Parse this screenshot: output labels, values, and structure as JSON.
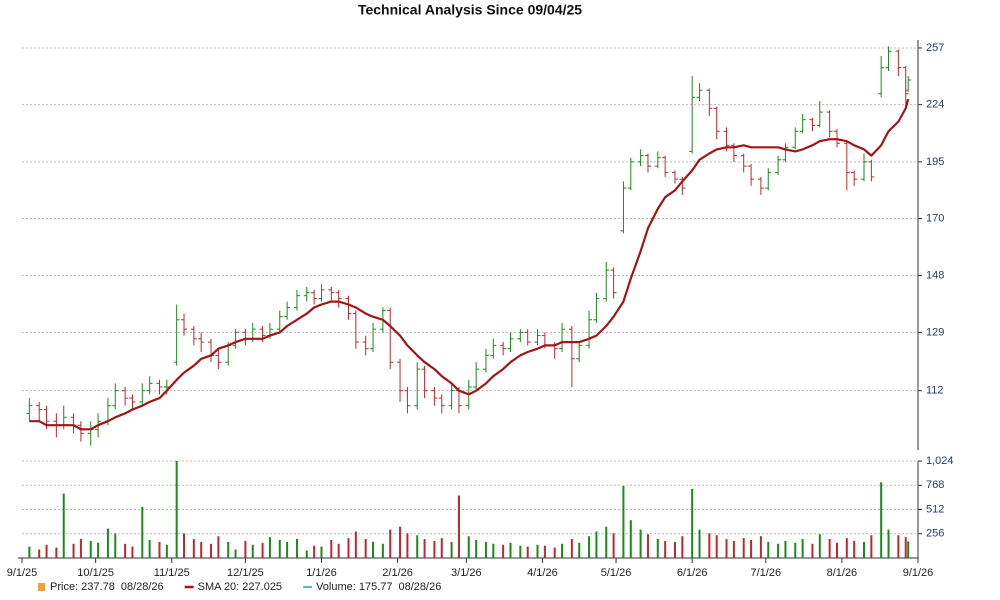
{
  "chart_data": {
    "type": "ohlc",
    "title": "Technical Analysis Since 09/04/25",
    "x": [
      "2025-09-04",
      "2025-09-08",
      "2025-09-11",
      "2025-09-15",
      "2025-09-18",
      "2025-09-22",
      "2025-09-25",
      "2025-09-29",
      "2025-10-02",
      "2025-10-06",
      "2025-10-09",
      "2025-10-13",
      "2025-10-16",
      "2025-10-20",
      "2025-10-23",
      "2025-10-27",
      "2025-10-30",
      "2025-11-03",
      "2025-11-06",
      "2025-11-10",
      "2025-11-13",
      "2025-11-17",
      "2025-11-20",
      "2025-11-24",
      "2025-11-27",
      "2025-12-01",
      "2025-12-04",
      "2025-12-08",
      "2025-12-11",
      "2025-12-15",
      "2025-12-18",
      "2025-12-22",
      "2025-12-26",
      "2025-12-29",
      "2026-01-01",
      "2026-01-05",
      "2026-01-08",
      "2026-01-12",
      "2026-01-15",
      "2026-01-19",
      "2026-01-22",
      "2026-01-26",
      "2026-01-29",
      "2026-02-02",
      "2026-02-05",
      "2026-02-09",
      "2026-02-12",
      "2026-02-16",
      "2026-02-19",
      "2026-02-23",
      "2026-02-26",
      "2026-03-02",
      "2026-03-05",
      "2026-03-09",
      "2026-03-12",
      "2026-03-16",
      "2026-03-19",
      "2026-03-23",
      "2026-03-26",
      "2026-03-30",
      "2026-04-02",
      "2026-04-06",
      "2026-04-09",
      "2026-04-13",
      "2026-04-16",
      "2026-04-20",
      "2026-04-23",
      "2026-04-27",
      "2026-04-30",
      "2026-05-04",
      "2026-05-07",
      "2026-05-11",
      "2026-05-14",
      "2026-05-18",
      "2026-05-21",
      "2026-05-25",
      "2026-05-28",
      "2026-06-01",
      "2026-06-04",
      "2026-06-08",
      "2026-06-11",
      "2026-06-15",
      "2026-06-18",
      "2026-06-22",
      "2026-06-25",
      "2026-06-29",
      "2026-07-02",
      "2026-07-06",
      "2026-07-09",
      "2026-07-13",
      "2026-07-16",
      "2026-07-20",
      "2026-07-23",
      "2026-07-27",
      "2026-07-30",
      "2026-08-03",
      "2026-08-06",
      "2026-08-10",
      "2026-08-13",
      "2026-08-17",
      "2026-08-20",
      "2026-08-24",
      "2026-08-27",
      "2026-08-28"
    ],
    "open": [
      106,
      108,
      107,
      104,
      103,
      105,
      103,
      101,
      102,
      104,
      108,
      112,
      110,
      109,
      112,
      114,
      113,
      120,
      133,
      130,
      127,
      126,
      122,
      120,
      125,
      129,
      127,
      130,
      128,
      130,
      134,
      137,
      141,
      142,
      140,
      143,
      142,
      140,
      135,
      126,
      124,
      130,
      136,
      120,
      112,
      108,
      118,
      112,
      110,
      108,
      112,
      108,
      113,
      118,
      122,
      125,
      124,
      127,
      129,
      126,
      128,
      125,
      124,
      130,
      121,
      125,
      133,
      140,
      150,
      165,
      183,
      195,
      198,
      193,
      197,
      190,
      187,
      200,
      228,
      232,
      222,
      210,
      203,
      198,
      193,
      187,
      183,
      190,
      196,
      202,
      210,
      216,
      213,
      220,
      210,
      204,
      190,
      187,
      195,
      230,
      245,
      255,
      245,
      232
    ],
    "high": [
      110,
      109,
      108,
      106,
      108,
      106,
      104,
      104,
      106,
      110,
      114,
      113,
      111,
      114,
      116,
      115,
      115,
      138,
      135,
      131,
      129,
      127,
      124,
      126,
      130,
      130,
      132,
      131,
      132,
      136,
      139,
      143,
      144,
      143,
      145,
      144,
      143,
      141,
      136,
      128,
      132,
      137,
      137,
      121,
      113,
      120,
      119,
      113,
      111,
      114,
      113,
      115,
      120,
      124,
      127,
      126,
      129,
      130,
      130,
      130,
      129,
      126,
      132,
      131,
      126,
      136,
      142,
      153,
      151,
      186,
      197,
      201,
      199,
      200,
      198,
      191,
      188,
      240,
      236,
      233,
      223,
      212,
      204,
      199,
      194,
      188,
      192,
      198,
      204,
      212,
      219,
      217,
      226,
      221,
      211,
      205,
      191,
      199,
      196,
      252,
      258,
      256,
      246,
      240
    ],
    "low": [
      104,
      104,
      102,
      100,
      102,
      101,
      99,
      98,
      100,
      103,
      107,
      108,
      107,
      108,
      111,
      111,
      111,
      119,
      128,
      125,
      123,
      120,
      118,
      119,
      124,
      125,
      126,
      126,
      127,
      129,
      133,
      136,
      139,
      138,
      139,
      139,
      137,
      133,
      124,
      122,
      123,
      129,
      118,
      109,
      106,
      107,
      110,
      108,
      106,
      107,
      106,
      107,
      112,
      117,
      121,
      122,
      123,
      126,
      125,
      125,
      124,
      121,
      123,
      113,
      120,
      124,
      132,
      139,
      140,
      164,
      182,
      193,
      190,
      192,
      188,
      185,
      180,
      199,
      226,
      218,
      206,
      200,
      195,
      190,
      184,
      180,
      182,
      189,
      195,
      201,
      209,
      210,
      212,
      207,
      202,
      182,
      184,
      186,
      186,
      228,
      243,
      240,
      222,
      231
    ],
    "close": [
      108,
      107,
      104,
      103,
      105,
      103,
      101,
      102,
      104,
      108,
      112,
      110,
      109,
      112,
      114,
      113,
      113,
      133,
      130,
      127,
      126,
      122,
      120,
      125,
      129,
      127,
      130,
      128,
      130,
      134,
      137,
      141,
      142,
      140,
      143,
      142,
      140,
      135,
      126,
      124,
      130,
      136,
      120,
      112,
      108,
      118,
      112,
      110,
      108,
      112,
      108,
      113,
      118,
      122,
      125,
      124,
      127,
      129,
      126,
      128,
      125,
      124,
      130,
      121,
      125,
      133,
      140,
      150,
      142,
      183,
      195,
      198,
      193,
      197,
      190,
      187,
      183,
      228,
      232,
      222,
      210,
      203,
      198,
      193,
      187,
      183,
      190,
      196,
      202,
      210,
      216,
      213,
      220,
      210,
      204,
      190,
      187,
      195,
      188,
      245,
      255,
      245,
      230,
      237.78
    ],
    "volume": [
      120,
      90,
      140,
      110,
      680,
      150,
      200,
      180,
      160,
      310,
      260,
      150,
      120,
      540,
      190,
      170,
      140,
      1024,
      260,
      200,
      170,
      150,
      230,
      170,
      90,
      180,
      140,
      160,
      220,
      190,
      170,
      200,
      80,
      130,
      120,
      190,
      150,
      210,
      280,
      200,
      170,
      150,
      300,
      330,
      260,
      240,
      200,
      180,
      210,
      170,
      660,
      230,
      190,
      170,
      150,
      140,
      160,
      130,
      120,
      140,
      130,
      110,
      150,
      200,
      160,
      230,
      280,
      330,
      260,
      760,
      400,
      300,
      250,
      200,
      180,
      170,
      230,
      730,
      300,
      260,
      240,
      200,
      180,
      210,
      190,
      230,
      170,
      150,
      180,
      160,
      200,
      150,
      250,
      200,
      160,
      210,
      180,
      170,
      240,
      800,
      300,
      240,
      220,
      175.77
    ],
    "sma": [
      104,
      104,
      103,
      103,
      103,
      103,
      102,
      102,
      103,
      104,
      105,
      106,
      107,
      108,
      109,
      110,
      112,
      115,
      117,
      119,
      121,
      122,
      124,
      125,
      126,
      127,
      127,
      127,
      128,
      129,
      131,
      133,
      135,
      137,
      138,
      139,
      139,
      138,
      137,
      135,
      134,
      133,
      131,
      128,
      125,
      122,
      120,
      118,
      116,
      114,
      112,
      111,
      112,
      114,
      116,
      118,
      120,
      122,
      123,
      124,
      125,
      125,
      126,
      126,
      126,
      127,
      128,
      131,
      134,
      139,
      147,
      157,
      166,
      174,
      179,
      182,
      186,
      191,
      196,
      199,
      201,
      202,
      202,
      203,
      202,
      202,
      202,
      202,
      201,
      200,
      201,
      203,
      205,
      206,
      206,
      205,
      203,
      201,
      198,
      203,
      210,
      215,
      222,
      227.025
    ],
    "up_color": "#1a8a1a",
    "down_color": "#c0272d",
    "sma_color": "#a31515",
    "y_scale": "log",
    "ylim": [
      97,
      262
    ],
    "yticks": [
      112,
      129,
      148,
      170,
      195,
      224,
      257
    ],
    "y2lim": [
      0,
      1024
    ],
    "y2ticks": [
      256,
      512,
      768,
      {
        "value": 1024,
        "label": "1,024"
      }
    ],
    "xlim": [
      "2025-09-01",
      "2026-09-01"
    ],
    "xticks": [
      {
        "value": "2025-09-01",
        "label": "9/1/25"
      },
      {
        "value": "2025-10-01",
        "label": "10/1/25"
      },
      {
        "value": "2025-11-01",
        "label": "11/1/25"
      },
      {
        "value": "2025-12-01",
        "label": "12/1/25"
      },
      {
        "value": "2026-01-01",
        "label": "1/1/26"
      },
      {
        "value": "2026-02-01",
        "label": "2/1/26"
      },
      {
        "value": "2026-03-01",
        "label": "3/1/26"
      },
      {
        "value": "2026-04-01",
        "label": "4/1/26"
      },
      {
        "value": "2026-05-01",
        "label": "5/1/26"
      },
      {
        "value": "2026-06-01",
        "label": "6/1/26"
      },
      {
        "value": "2026-07-01",
        "label": "7/1/26"
      },
      {
        "value": "2026-08-01",
        "label": "8/1/26"
      },
      {
        "value": "2026-09-01",
        "label": "9/1/26"
      }
    ],
    "grid": true,
    "legend": [
      {
        "text": "Price: 237.78",
        "date": "08/28/26",
        "color": "#f0a040"
      },
      {
        "text": "SMA 20: 227.025",
        "color": "#a31515"
      },
      {
        "text": "Volume: 175.77",
        "date": "08/28/26",
        "color": "#20a0a0"
      }
    ]
  }
}
